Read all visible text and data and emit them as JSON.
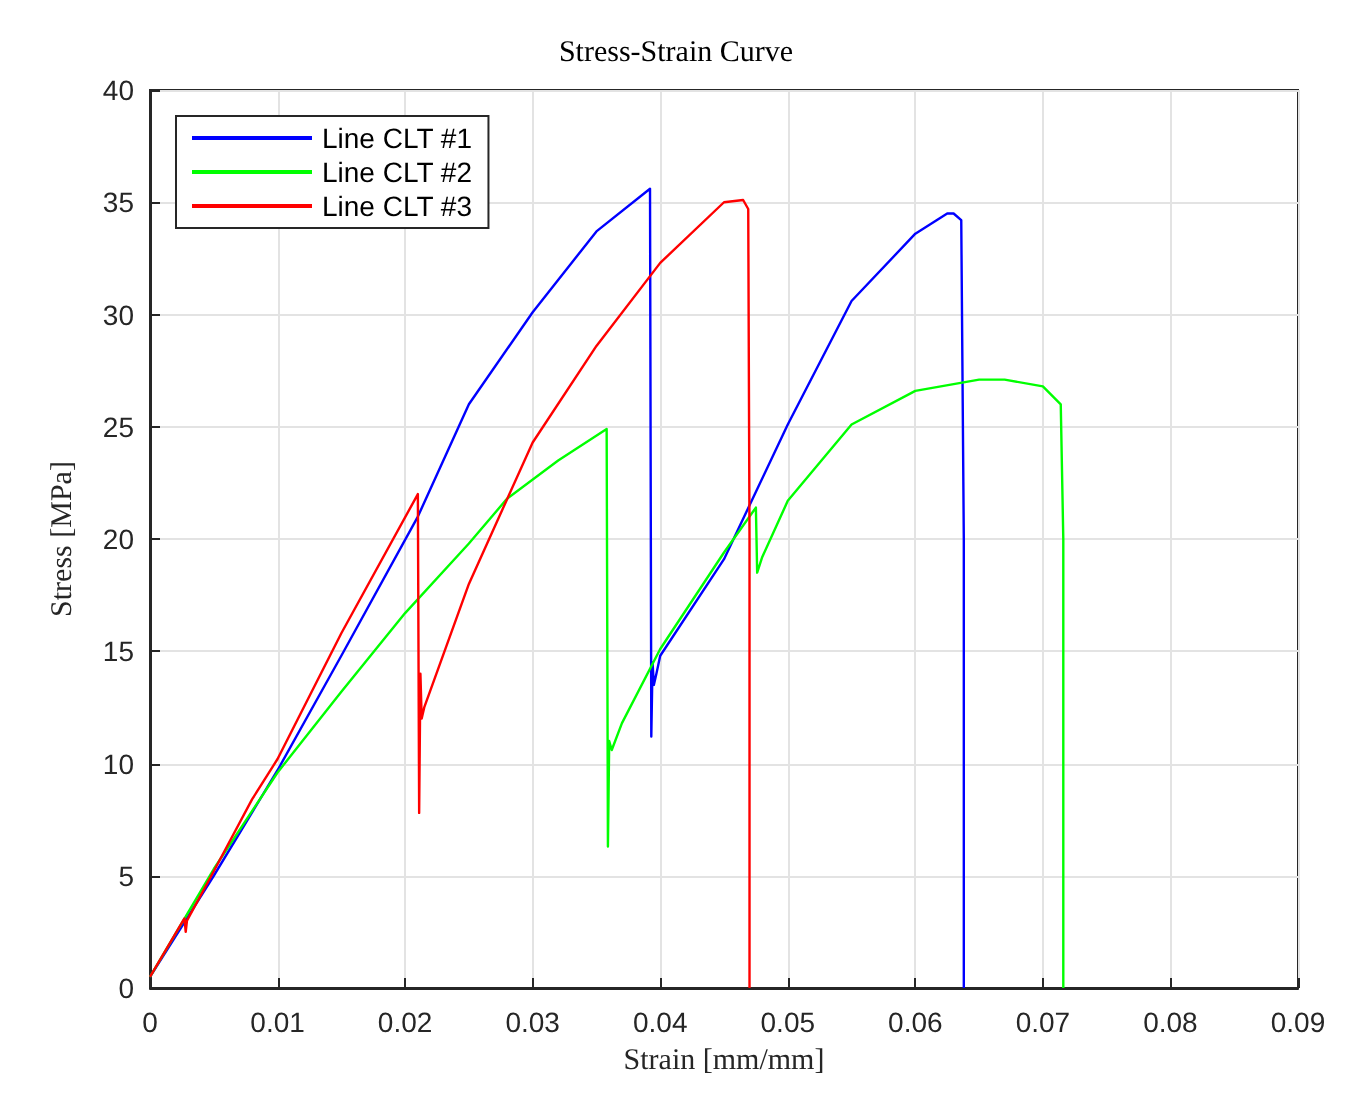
{
  "chart_data": {
    "type": "line",
    "title": "Stress-Strain Curve",
    "xlabel": "Strain [mm/mm]",
    "ylabel": "Stress [MPa]",
    "xlim": [
      0,
      0.09
    ],
    "ylim": [
      0,
      40
    ],
    "xticks": [
      0,
      0.01,
      0.02,
      0.03,
      0.04,
      0.05,
      0.06,
      0.07,
      0.08,
      0.09
    ],
    "yticks": [
      0,
      5,
      10,
      15,
      20,
      25,
      30,
      35,
      40
    ],
    "grid": true,
    "legend": "top left",
    "marker": "none",
    "line_style": "solid",
    "series": [
      {
        "name": "Line CLT #1",
        "color": "#0000ff",
        "x": [
          0,
          0.005,
          0.01,
          0.015,
          0.021,
          0.025,
          0.03,
          0.035,
          0.0392,
          0.0393,
          0.0394,
          0.0395,
          0.0397,
          0.04,
          0.045,
          0.05,
          0.055,
          0.06,
          0.0625,
          0.063,
          0.0636,
          0.0638,
          0.0638
        ],
        "values": [
          0.5,
          5,
          9.7,
          14.8,
          21,
          26,
          30.1,
          33.7,
          35.6,
          11.2,
          14.5,
          13.5,
          14,
          14.8,
          19.1,
          25.1,
          30.6,
          33.6,
          34.5,
          34.5,
          34.2,
          20,
          0
        ]
      },
      {
        "name": "Line CLT #2",
        "color": "#00ff00",
        "x": [
          0,
          0.005,
          0.01,
          0.015,
          0.02,
          0.025,
          0.028,
          0.032,
          0.0358,
          0.0359,
          0.036,
          0.0362,
          0.037,
          0.04,
          0.045,
          0.0475,
          0.0476,
          0.048,
          0.05,
          0.055,
          0.06,
          0.065,
          0.067,
          0.07,
          0.0714,
          0.0716,
          0.0716
        ],
        "values": [
          0.5,
          5.3,
          9.6,
          13.2,
          16.7,
          19.8,
          21.8,
          23.5,
          24.9,
          6.3,
          11,
          10.6,
          11.8,
          15.1,
          19.4,
          21.4,
          18.5,
          19.2,
          21.7,
          25.1,
          26.6,
          27.1,
          27.1,
          26.8,
          26,
          20,
          0
        ]
      },
      {
        "name": "Line CLT #3",
        "color": "#ff0000",
        "x": [
          0,
          0.0027,
          0.0028,
          0.0029,
          0.005,
          0.008,
          0.01,
          0.015,
          0.021,
          0.0211,
          0.0212,
          0.0213,
          0.0215,
          0.025,
          0.03,
          0.035,
          0.04,
          0.045,
          0.0465,
          0.0469,
          0.047,
          0.047
        ],
        "values": [
          0.5,
          3.1,
          2.5,
          3,
          5.2,
          8.4,
          10.2,
          15.8,
          22,
          7.8,
          14,
          12,
          12.5,
          18,
          24.3,
          28.6,
          32.3,
          35,
          35.1,
          34.7,
          20,
          0
        ]
      }
    ]
  }
}
